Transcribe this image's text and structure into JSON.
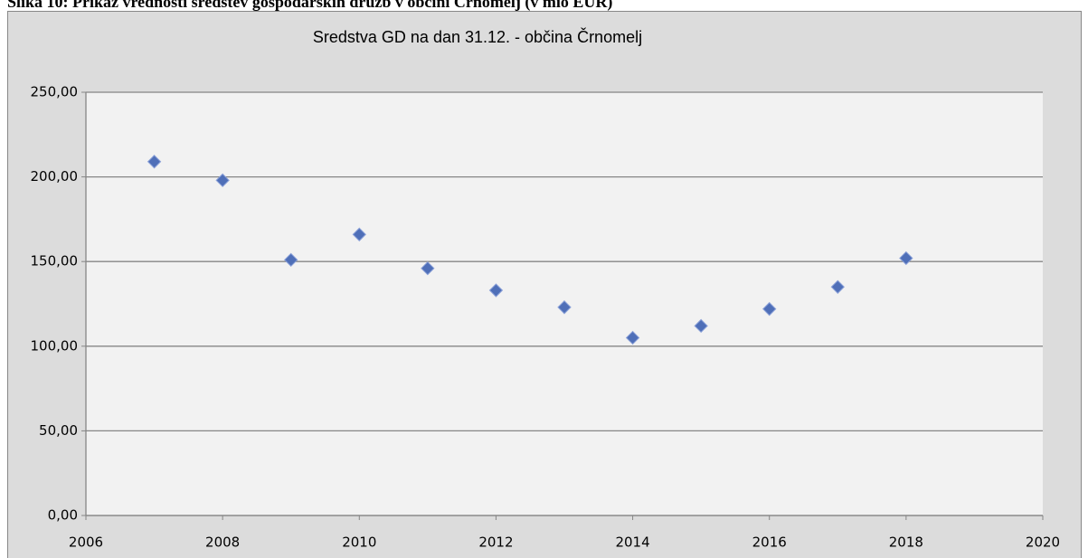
{
  "caption": "Slika 10: Prikaz vrednosti sredstev gospodarskih družb v občini Črnomelj (v mio EUR)",
  "chart_data": {
    "type": "scatter",
    "title": "Sredstva  GD na dan 31.12.   - občina  Črnomelj",
    "x": [
      2007,
      2008,
      2009,
      2010,
      2011,
      2012,
      2013,
      2014,
      2015,
      2016,
      2017,
      2018
    ],
    "values": [
      209,
      198,
      151,
      166,
      146,
      133,
      123,
      105,
      112,
      122,
      135,
      152
    ],
    "color": "#4f6fb8",
    "xlim": [
      2006,
      2020
    ],
    "xticks": [
      2006,
      2008,
      2010,
      2012,
      2014,
      2016,
      2018,
      2020
    ],
    "ylim": [
      0,
      250
    ],
    "yticks": [
      {
        "value": 0,
        "label": "0,00"
      },
      {
        "value": 50,
        "label": "50,00"
      },
      {
        "value": 100,
        "label": "100,00"
      },
      {
        "value": 150,
        "label": "150,00"
      },
      {
        "value": 200,
        "label": "200,00"
      },
      {
        "value": 250,
        "label": "250,00"
      }
    ],
    "grid": true
  }
}
